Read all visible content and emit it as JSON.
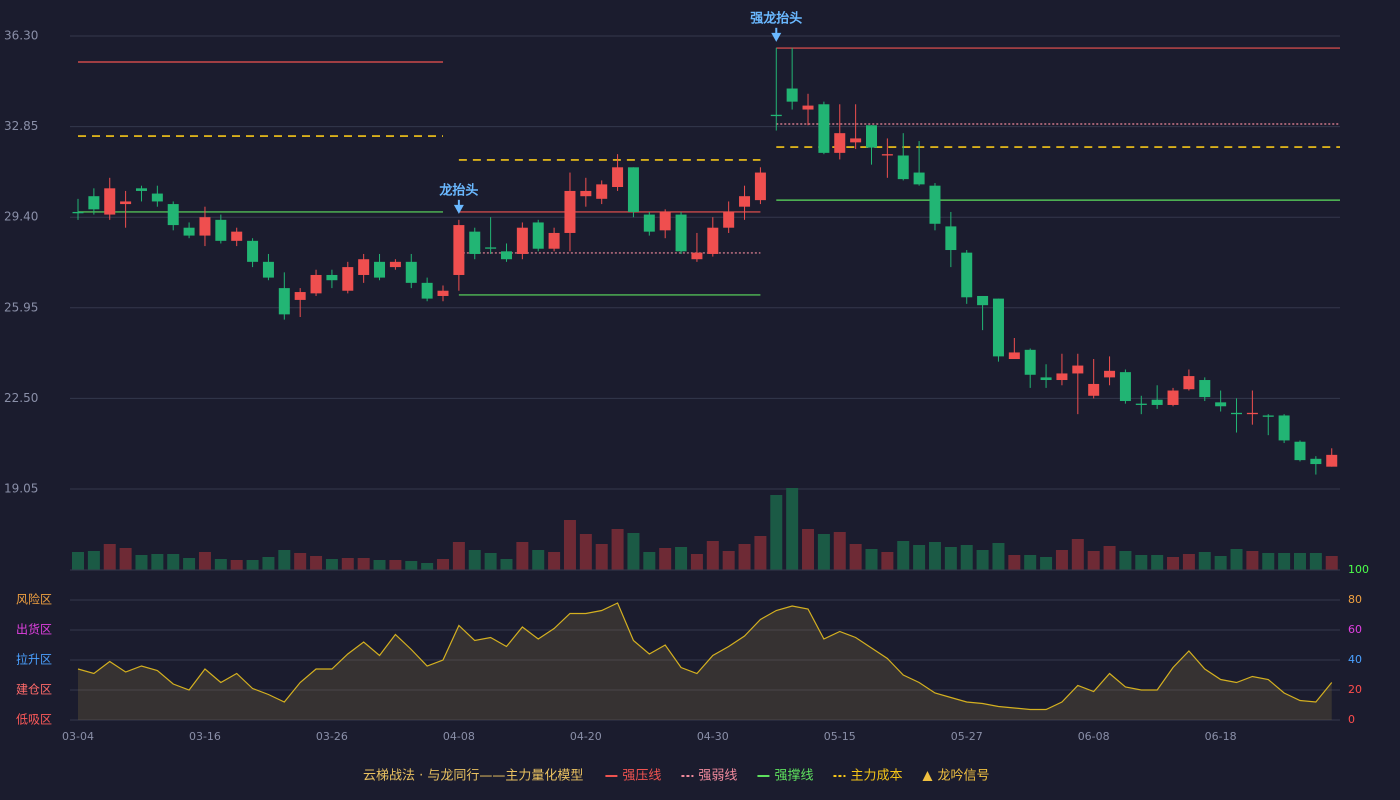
{
  "chart_data": [
    {
      "type": "candlestick",
      "categories": [
        "03-04",
        null,
        null,
        null,
        null,
        null,
        null,
        null,
        "03-16",
        null,
        null,
        null,
        null,
        null,
        null,
        null,
        "03-26",
        null,
        null,
        null,
        null,
        null,
        null,
        null,
        "04-08",
        null,
        null,
        null,
        null,
        null,
        null,
        null,
        "04-20",
        null,
        null,
        null,
        null,
        null,
        null,
        null,
        "04-30",
        null,
        null,
        null,
        null,
        null,
        null,
        null,
        "05-15",
        null,
        null,
        null,
        null,
        null,
        null,
        null,
        "05-27",
        null,
        null,
        null,
        null,
        null,
        null,
        null,
        "06-08",
        null,
        null,
        null,
        null,
        null,
        null,
        null,
        "06-18",
        null,
        null,
        null,
        null,
        null,
        null,
        null
      ],
      "open": [
        29.6,
        30.2,
        29.5,
        29.9,
        30.5,
        30.3,
        29.9,
        29.0,
        28.7,
        29.3,
        28.5,
        28.5,
        27.7,
        26.7,
        26.25,
        26.5,
        27.2,
        26.6,
        27.2,
        27.7,
        27.5,
        27.7,
        26.9,
        26.4,
        27.2,
        28.85,
        28.25,
        28.1,
        28.0,
        29.2,
        28.2,
        28.8,
        30.2,
        30.1,
        30.55,
        31.3,
        29.5,
        28.9,
        29.5,
        27.8,
        28.0,
        29.0,
        29.8,
        30.05,
        33.3,
        34.3,
        33.5,
        33.7,
        31.85,
        32.25,
        32.9,
        31.75,
        31.75,
        31.1,
        30.6,
        29.05,
        28.05,
        26.4,
        26.3,
        24.0,
        24.35,
        23.3,
        23.2,
        23.45,
        22.6,
        23.3,
        23.5,
        22.3,
        22.45,
        22.25,
        22.85,
        23.2,
        22.35,
        21.95,
        21.9,
        21.85,
        21.85,
        20.85,
        20.2,
        19.9
      ],
      "high": [
        30.1,
        30.5,
        30.9,
        30.4,
        30.6,
        30.6,
        30.0,
        29.2,
        29.8,
        29.5,
        29.0,
        28.6,
        28.0,
        27.3,
        26.7,
        27.4,
        27.4,
        27.7,
        28.0,
        28.0,
        27.8,
        28.0,
        27.1,
        26.8,
        29.3,
        29.0,
        29.4,
        28.4,
        29.2,
        29.3,
        29.0,
        31.1,
        30.9,
        30.8,
        31.8,
        31.3,
        29.6,
        29.7,
        29.6,
        28.8,
        29.4,
        30.0,
        30.6,
        31.3,
        35.85,
        35.85,
        34.1,
        33.8,
        33.7,
        33.7,
        32.9,
        32.4,
        32.6,
        32.3,
        30.7,
        29.6,
        28.15,
        26.4,
        26.3,
        24.8,
        24.4,
        23.8,
        24.2,
        24.2,
        24.0,
        24.1,
        23.6,
        22.6,
        23.0,
        22.9,
        23.6,
        23.3,
        22.8,
        22.5,
        22.8,
        21.9,
        21.9,
        20.9,
        20.3,
        20.6
      ],
      "low": [
        29.3,
        29.5,
        29.3,
        29.0,
        30.0,
        29.8,
        28.9,
        28.6,
        28.3,
        28.4,
        28.3,
        27.5,
        27.0,
        25.5,
        25.6,
        26.4,
        26.7,
        26.5,
        26.9,
        27.0,
        27.4,
        26.7,
        26.2,
        26.2,
        26.6,
        27.8,
        28.0,
        27.7,
        27.8,
        28.1,
        28.1,
        28.1,
        29.8,
        29.9,
        30.4,
        29.4,
        28.7,
        28.6,
        28.0,
        27.7,
        27.9,
        28.8,
        29.3,
        29.9,
        32.7,
        33.5,
        32.9,
        31.8,
        31.6,
        32.0,
        31.4,
        30.9,
        30.8,
        30.6,
        28.9,
        27.5,
        26.1,
        25.1,
        23.9,
        24.0,
        22.9,
        22.9,
        23.0,
        21.9,
        22.5,
        23.0,
        22.3,
        21.9,
        22.1,
        22.2,
        22.8,
        22.4,
        22.0,
        21.2,
        21.5,
        21.1,
        20.8,
        20.1,
        19.6,
        19.9
      ],
      "close": [
        29.55,
        29.7,
        30.5,
        30.0,
        30.4,
        30.0,
        29.1,
        28.7,
        29.4,
        28.5,
        28.85,
        27.7,
        27.1,
        25.7,
        26.55,
        27.2,
        27.0,
        27.5,
        27.8,
        27.1,
        27.7,
        26.9,
        26.3,
        26.6,
        29.1,
        28.0,
        28.2,
        27.8,
        29.0,
        28.2,
        28.8,
        30.4,
        30.4,
        30.65,
        31.3,
        29.6,
        28.85,
        29.6,
        28.1,
        28.05,
        29.0,
        29.6,
        30.2,
        31.1,
        33.25,
        33.8,
        33.65,
        31.85,
        32.6,
        32.4,
        32.05,
        31.8,
        30.85,
        30.65,
        29.15,
        28.15,
        26.35,
        26.05,
        24.1,
        24.25,
        23.4,
        23.2,
        23.45,
        23.75,
        23.05,
        23.55,
        22.4,
        22.25,
        22.25,
        22.8,
        23.35,
        22.55,
        22.2,
        21.9,
        21.95,
        21.8,
        20.9,
        20.15,
        20.0,
        20.35
      ],
      "up_color": "#ef4f4f",
      "down_color": "#22b574",
      "ylim": [
        19.05,
        36.3
      ],
      "yticks": [
        19.05,
        {
          "value": 22.5,
          "label": "22.50"
        },
        25.95,
        {
          "value": 29.4,
          "label": "29.40"
        },
        32.85,
        {
          "value": 36.3,
          "label": "36.30"
        }
      ],
      "grid": true,
      "legend_title": "云梯战法 · 与龙同行——主力量化模型",
      "levels": [
        {
          "name": "强压线",
          "color": "#ef5350",
          "style": "solid",
          "values": [
            35.31,
            35.31,
            35.31,
            35.31,
            35.31,
            35.31,
            35.31,
            35.31,
            35.31,
            35.31,
            35.31,
            35.31,
            35.31,
            35.31,
            35.31,
            35.31,
            35.31,
            35.31,
            35.31,
            35.31,
            35.31,
            35.31,
            35.31,
            35.31,
            29.6,
            29.6,
            29.6,
            29.6,
            29.6,
            29.6,
            29.6,
            29.6,
            29.6,
            29.6,
            29.6,
            29.6,
            29.6,
            29.6,
            29.6,
            29.6,
            29.6,
            29.6,
            29.6,
            29.6,
            35.84,
            35.84,
            35.84,
            35.84,
            35.84,
            35.84,
            35.84,
            35.84,
            35.84,
            35.84,
            35.84,
            35.84,
            35.84,
            35.84,
            35.84,
            35.84,
            35.84,
            35.84,
            35.84,
            35.84,
            35.84,
            35.84,
            35.84,
            35.84,
            35.84,
            35.84,
            35.84,
            35.84,
            35.84,
            35.84,
            35.84,
            35.84,
            35.84,
            35.84,
            35.84,
            35.84
          ]
        },
        {
          "name": "强弱线",
          "color": "#f08a9c",
          "style": "dotted",
          "values": [
            null,
            null,
            null,
            null,
            null,
            null,
            null,
            null,
            null,
            null,
            null,
            null,
            null,
            null,
            null,
            null,
            null,
            null,
            null,
            null,
            null,
            null,
            null,
            null,
            28.04,
            28.04,
            28.04,
            28.04,
            28.04,
            28.04,
            28.04,
            28.04,
            28.04,
            28.04,
            28.04,
            28.04,
            28.04,
            28.04,
            28.04,
            28.04,
            28.04,
            28.04,
            28.04,
            28.04,
            32.95,
            32.95,
            32.95,
            32.95,
            32.95,
            32.95,
            32.95,
            32.95,
            32.95,
            32.95,
            32.95,
            32.95,
            32.95,
            32.95,
            32.95,
            32.95,
            32.95,
            32.95,
            32.95,
            32.95,
            32.95,
            32.95,
            32.95,
            32.95,
            32.95,
            32.95,
            32.95,
            32.95,
            32.95,
            32.95,
            32.95,
            32.95,
            32.95,
            32.95,
            32.95,
            32.95
          ]
        },
        {
          "name": "强撑线",
          "color": "#5ee05e",
          "style": "solid",
          "values": [
            29.6,
            29.6,
            29.6,
            29.6,
            29.6,
            29.6,
            29.6,
            29.6,
            29.6,
            29.6,
            29.6,
            29.6,
            29.6,
            29.6,
            29.6,
            29.6,
            29.6,
            29.6,
            29.6,
            29.6,
            29.6,
            29.6,
            29.6,
            29.6,
            26.44,
            26.44,
            26.44,
            26.44,
            26.44,
            26.44,
            26.44,
            26.44,
            26.44,
            26.44,
            26.44,
            26.44,
            26.44,
            26.44,
            26.44,
            26.44,
            26.44,
            26.44,
            26.44,
            26.44,
            30.05,
            30.05,
            30.05,
            30.05,
            30.05,
            30.05,
            30.05,
            30.05,
            30.05,
            30.05,
            30.05,
            30.05,
            30.05,
            30.05,
            30.05,
            30.05,
            30.05,
            30.05,
            30.05,
            30.05,
            30.05,
            30.05,
            30.05,
            30.05,
            30.05,
            30.05,
            30.05,
            30.05,
            30.05,
            30.05,
            30.05,
            30.05,
            30.05,
            30.05,
            30.05,
            30.05
          ]
        },
        {
          "name": "主力成本",
          "color": "#f5c518",
          "style": "dashed",
          "values": [
            32.49,
            32.49,
            32.49,
            32.49,
            32.49,
            32.49,
            32.49,
            32.49,
            32.49,
            32.49,
            32.49,
            32.49,
            32.49,
            32.49,
            32.49,
            32.49,
            32.49,
            32.49,
            32.49,
            32.49,
            32.49,
            32.49,
            32.49,
            32.49,
            31.58,
            31.58,
            31.58,
            31.58,
            31.58,
            31.58,
            31.58,
            31.58,
            31.58,
            31.58,
            31.58,
            31.58,
            31.58,
            31.58,
            31.58,
            31.58,
            31.58,
            31.58,
            31.58,
            31.58,
            32.07,
            32.07,
            32.07,
            32.07,
            32.07,
            32.07,
            32.07,
            32.07,
            32.07,
            32.07,
            32.07,
            32.07,
            32.07,
            32.07,
            32.07,
            32.07,
            32.07,
            32.07,
            32.07,
            32.07,
            32.07,
            32.07,
            32.07,
            32.07,
            32.07,
            32.07,
            32.07,
            32.07,
            32.07,
            32.07,
            32.07,
            32.07,
            32.07,
            32.07,
            32.07,
            32.07
          ]
        }
      ],
      "signals": {
        "name": "龙吟信号",
        "color": "#f0c040",
        "label_color": "#6ab8ff",
        "points": [
          {
            "index": 24,
            "label": "龙抬头"
          },
          {
            "index": 44,
            "label": "强龙抬头"
          }
        ]
      }
    },
    {
      "type": "volume",
      "values": [
        18,
        19,
        26,
        22,
        15,
        16,
        16,
        12,
        18,
        11,
        10,
        10,
        13,
        20,
        17,
        14,
        11,
        12,
        12,
        10,
        10,
        9,
        7,
        11,
        28,
        20,
        17,
        11,
        28,
        20,
        18,
        50,
        36,
        26,
        41,
        37,
        18,
        22,
        23,
        16,
        29,
        19,
        26,
        34,
        75,
        82,
        41,
        36,
        38,
        26,
        21,
        18,
        29,
        25,
        28,
        23,
        25,
        20,
        27,
        15,
        15,
        13,
        20,
        31,
        19,
        24,
        19,
        15,
        15,
        13,
        16,
        18,
        14,
        21,
        19,
        17,
        17,
        17,
        17,
        14
      ],
      "up_color": "#6e2a35",
      "down_color": "#1b5a45"
    },
    {
      "type": "area",
      "values": [
        34,
        31,
        39,
        32,
        36,
        33,
        24,
        20,
        34,
        25,
        31,
        21,
        17,
        12,
        25,
        34,
        34,
        44,
        52,
        43,
        57,
        47,
        36,
        40,
        63,
        53,
        55,
        49,
        62,
        54,
        61,
        71,
        71,
        73,
        78,
        53,
        44,
        50,
        35,
        31,
        43,
        49,
        56,
        67,
        73,
        76,
        74,
        54,
        59,
        55,
        48,
        41,
        30,
        25,
        18,
        15,
        12,
        11,
        9,
        8,
        7,
        7,
        12,
        23,
        19,
        31,
        22,
        20,
        20,
        35,
        46,
        34,
        27,
        25,
        29,
        27,
        18,
        13,
        12,
        25
      ],
      "color": "#d4b020",
      "fill": "rgba(150,130,70,0.22)",
      "ylim": [
        0,
        100
      ],
      "yticks": [
        0,
        20,
        40,
        60,
        80,
        100
      ],
      "ytick_colors": [
        "#ff4d4d",
        "#ff4d4d",
        "#4aa0ff",
        "#e040e0",
        "#f0a040",
        "#4cff4c"
      ],
      "zones": [
        {
          "label": "低吸区",
          "color": "#ff5a5a"
        },
        {
          "label": "建仓区",
          "color": "#ff6a6a"
        },
        {
          "label": "拉升区",
          "color": "#4aa0ff"
        },
        {
          "label": "出货区",
          "color": "#e040e0"
        },
        {
          "label": "风险区",
          "color": "#f0a040"
        }
      ]
    }
  ]
}
